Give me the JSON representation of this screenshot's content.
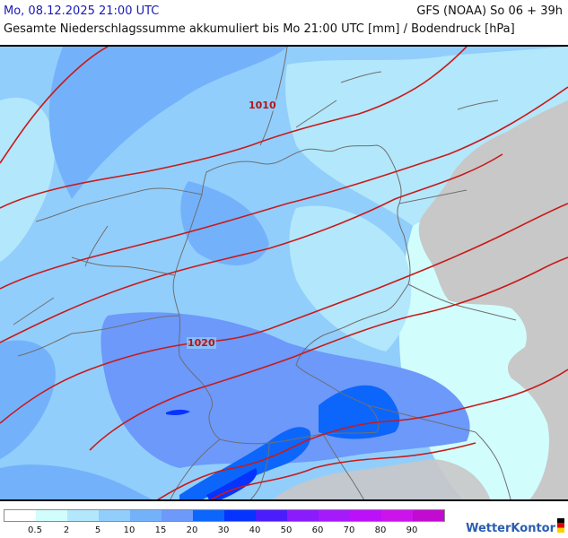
{
  "header": {
    "valid_time": "Mo, 08.12.2025 21:00 UTC",
    "model_run": "GFS (NOAA) So 06 + 39h",
    "subtitle": "Gesamte Niederschlagssumme akkumuliert bis Mo 21:00 UTC [mm] / Bodendruck [hPa]"
  },
  "map": {
    "region": "Germany / Central Europe",
    "isobars": [
      {
        "label": "1010",
        "value_hpa": 1010
      },
      {
        "label": "1020",
        "value_hpa": 1020
      }
    ],
    "colors": {
      "isobar": "#c81a1a",
      "border": "#6f6f6f",
      "outside_domain": "#c8c8c8"
    }
  },
  "legend": {
    "ticks": [
      "0.5",
      "2",
      "5",
      "10",
      "15",
      "20",
      "30",
      "40",
      "50",
      "60",
      "70",
      "80",
      "90"
    ],
    "colors": [
      "#ffffff",
      "#d2fdfd",
      "#b3e7fb",
      "#92cefb",
      "#73b2fb",
      "#6c99fa",
      "#0d66fb",
      "#0633fd",
      "#4b1dfc",
      "#8a1bfc",
      "#a41afb",
      "#bc11f8",
      "#cd13ec",
      "#c20ad0"
    ]
  },
  "brand": {
    "name": "WetterKontor"
  }
}
